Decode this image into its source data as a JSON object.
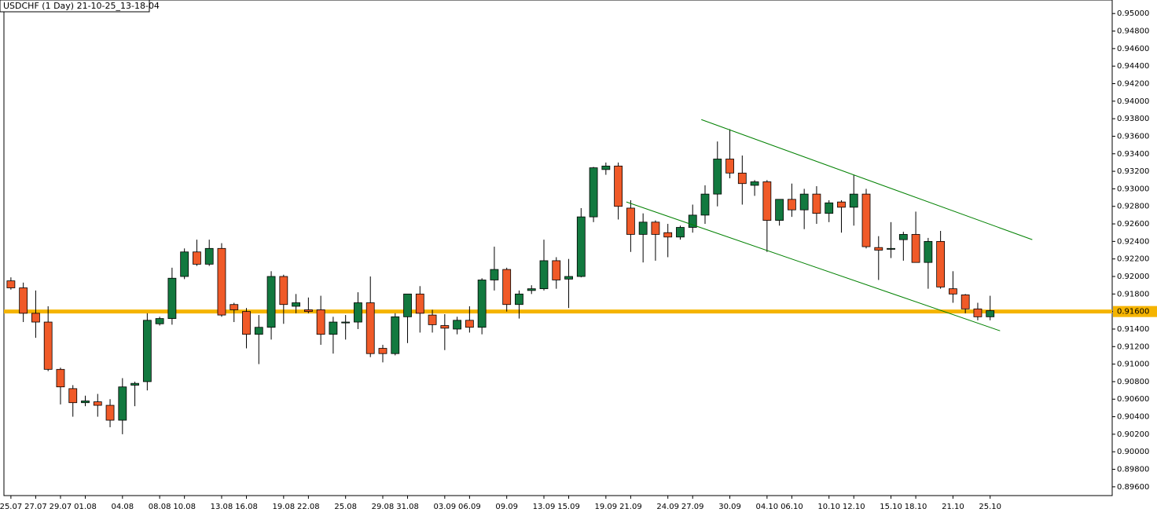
{
  "chart_data": {
    "type": "candlestick",
    "title": "USDCHF (1 Day) 21-10-25_13-18-04",
    "categories": [
      "25.07",
      null,
      "27.07",
      null,
      "29.07",
      null,
      "01.08",
      null,
      null,
      "04.08",
      null,
      null,
      "08.08",
      null,
      "10.08",
      null,
      null,
      "13.08",
      null,
      "16.08",
      null,
      null,
      "19.08",
      null,
      "22.08",
      null,
      null,
      "25.08",
      null,
      null,
      "29.08",
      null,
      "31.08",
      null,
      null,
      "03.09",
      null,
      "06.09",
      null,
      null,
      "09.09",
      null,
      null,
      "13.09",
      null,
      "15.09",
      null,
      null,
      "19.09",
      null,
      "21.09",
      null,
      null,
      "24.09",
      null,
      "27.09",
      null,
      null,
      "30.09",
      null,
      null,
      "04.10",
      null,
      "06.10",
      null,
      null,
      "10.10",
      null,
      "12.10",
      null,
      null,
      "15.10",
      null,
      "18.10",
      null,
      null,
      "21.10",
      null,
      null,
      "25.10"
    ],
    "open": [
      0.9195,
      0.9187,
      0.9158,
      0.9148,
      0.9094,
      0.9072,
      0.9056,
      0.9057,
      0.9053,
      0.9036,
      0.9076,
      0.908,
      0.9146,
      0.9152,
      0.92,
      0.9228,
      0.9214,
      0.9232,
      0.9168,
      0.916,
      0.9134,
      0.9142,
      0.92,
      0.9166,
      0.9162,
      0.9162,
      0.9134,
      0.9147,
      0.9148,
      0.917,
      0.9118,
      0.9112,
      0.9154,
      0.918,
      0.9156,
      0.9144,
      0.914,
      0.915,
      0.9142,
      0.9196,
      0.9208,
      0.9168,
      0.9184,
      0.9186,
      0.9218,
      0.9197,
      0.92,
      0.9268,
      0.9322,
      0.9326,
      0.9278,
      0.9248,
      0.9262,
      0.925,
      0.9245,
      0.9256,
      0.927,
      0.9294,
      0.9334,
      0.9318,
      0.9304,
      0.9308,
      0.9264,
      0.9288,
      0.9276,
      0.9294,
      0.9272,
      0.9285,
      0.9279,
      0.9294,
      0.9233,
      0.9231,
      0.9242,
      0.9248,
      0.9216,
      0.924,
      0.9186,
      0.9179,
      0.9163,
      0.9154
    ],
    "high": [
      0.9199,
      0.9193,
      0.9184,
      0.9166,
      0.9096,
      0.9076,
      0.9064,
      0.9066,
      0.906,
      0.9084,
      0.908,
      0.9158,
      0.9154,
      0.921,
      0.9232,
      0.9242,
      0.9242,
      0.9238,
      0.917,
      0.9164,
      0.9156,
      0.9206,
      0.9202,
      0.918,
      0.9176,
      0.9178,
      0.9154,
      0.9156,
      0.9182,
      0.92,
      0.9122,
      0.9158,
      0.918,
      0.9189,
      0.9162,
      0.9157,
      0.9154,
      0.9166,
      0.9198,
      0.9234,
      0.921,
      0.9184,
      0.919,
      0.9242,
      0.9222,
      0.922,
      0.9278,
      0.9325,
      0.933,
      0.933,
      0.9287,
      0.9272,
      0.9264,
      0.926,
      0.9258,
      0.9282,
      0.9304,
      0.9354,
      0.9368,
      0.9338,
      0.931,
      0.931,
      0.9288,
      0.9306,
      0.93,
      0.9303,
      0.9287,
      0.9287,
      0.9316,
      0.93,
      0.9246,
      0.9262,
      0.9251,
      0.9274,
      0.9244,
      0.9252,
      0.9206,
      0.918,
      0.917,
      0.9178
    ],
    "low": [
      0.9185,
      0.9148,
      0.913,
      0.9092,
      0.9054,
      0.904,
      0.9052,
      0.904,
      0.9028,
      0.902,
      0.9052,
      0.907,
      0.9144,
      0.9145,
      0.9197,
      0.9212,
      0.9212,
      0.9154,
      0.9148,
      0.9118,
      0.91,
      0.9128,
      0.9146,
      0.9158,
      0.9158,
      0.9122,
      0.9112,
      0.9128,
      0.914,
      0.9108,
      0.9102,
      0.911,
      0.9124,
      0.9136,
      0.9136,
      0.9116,
      0.9134,
      0.9136,
      0.9134,
      0.9184,
      0.916,
      0.9152,
      0.918,
      0.9184,
      0.9186,
      0.9164,
      0.9199,
      0.9262,
      0.9316,
      0.9265,
      0.9228,
      0.9216,
      0.9218,
      0.9222,
      0.9242,
      0.925,
      0.926,
      0.928,
      0.9312,
      0.9282,
      0.9292,
      0.9228,
      0.9258,
      0.9268,
      0.9254,
      0.926,
      0.9262,
      0.925,
      0.9258,
      0.9232,
      0.9196,
      0.9221,
      0.9218,
      0.9216,
      0.9186,
      0.9186,
      0.917,
      0.9158,
      0.915,
      0.915
    ],
    "close": [
      0.9187,
      0.9158,
      0.9148,
      0.9094,
      0.9074,
      0.9056,
      0.9058,
      0.9053,
      0.9036,
      0.9074,
      0.9078,
      0.915,
      0.9152,
      0.9198,
      0.9228,
      0.9214,
      0.9232,
      0.9156,
      0.9162,
      0.9134,
      0.9142,
      0.92,
      0.9168,
      0.917,
      0.916,
      0.9134,
      0.9148,
      0.9148,
      0.917,
      0.9112,
      0.9112,
      0.9154,
      0.918,
      0.9158,
      0.9145,
      0.9141,
      0.915,
      0.9142,
      0.9196,
      0.9208,
      0.9168,
      0.918,
      0.9186,
      0.9218,
      0.9196,
      0.92,
      0.9268,
      0.9324,
      0.9326,
      0.928,
      0.9248,
      0.9262,
      0.9248,
      0.9245,
      0.9256,
      0.927,
      0.9294,
      0.9334,
      0.9318,
      0.9306,
      0.9308,
      0.9264,
      0.9288,
      0.9276,
      0.9294,
      0.9272,
      0.9284,
      0.9279,
      0.9294,
      0.9234,
      0.923,
      0.9232,
      0.9248,
      0.9216,
      0.924,
      0.9188,
      0.918,
      0.9163,
      0.9154,
      0.9161
    ],
    "up_color": "#12793f",
    "down_color": "#f05a28",
    "ylim": [
      0.895,
      0.9502
    ],
    "yticks": [
      {
        "value": 0.896,
        "label": "0.89600"
      },
      {
        "value": 0.898,
        "label": "0.89800"
      },
      {
        "value": 0.9,
        "label": "0.90000"
      },
      {
        "value": 0.902,
        "label": "0.90200"
      },
      {
        "value": 0.904,
        "label": "0.90400"
      },
      {
        "value": 0.906,
        "label": "0.90600"
      },
      {
        "value": 0.908,
        "label": "0.90800"
      },
      {
        "value": 0.91,
        "label": "0.91000"
      },
      {
        "value": 0.912,
        "label": "0.91200"
      },
      {
        "value": 0.914,
        "label": "0.91400"
      },
      {
        "value": 0.916,
        "label": "0.91600"
      },
      {
        "value": 0.918,
        "label": "0.91800"
      },
      {
        "value": 0.92,
        "label": "0.92000"
      },
      {
        "value": 0.922,
        "label": "0.92200"
      },
      {
        "value": 0.924,
        "label": "0.92400"
      },
      {
        "value": 0.926,
        "label": "0.92600"
      },
      {
        "value": 0.928,
        "label": "0.92800"
      },
      {
        "value": 0.93,
        "label": "0.93000"
      },
      {
        "value": 0.932,
        "label": "0.93200"
      },
      {
        "value": 0.934,
        "label": "0.93400"
      },
      {
        "value": 0.936,
        "label": "0.93600"
      },
      {
        "value": 0.938,
        "label": "0.93800"
      },
      {
        "value": 0.94,
        "label": "0.94000"
      },
      {
        "value": 0.942,
        "label": "0.94200"
      },
      {
        "value": 0.944,
        "label": "0.94400"
      },
      {
        "value": 0.946,
        "label": "0.94600"
      },
      {
        "value": 0.948,
        "label": "0.94800"
      },
      {
        "value": 0.95,
        "label": "0.95000"
      }
    ],
    "hline": {
      "value": 0.916,
      "label": "0.91600",
      "color": "#f5b400"
    },
    "channel_lines": [
      {
        "x": [
          55.7,
          82.4
        ],
        "y": [
          0.9379,
          0.9242
        ],
        "color": "#008000"
      },
      {
        "x": [
          49.65,
          79.8
        ],
        "y": [
          0.9285,
          0.9138
        ],
        "color": "#008000"
      }
    ]
  }
}
